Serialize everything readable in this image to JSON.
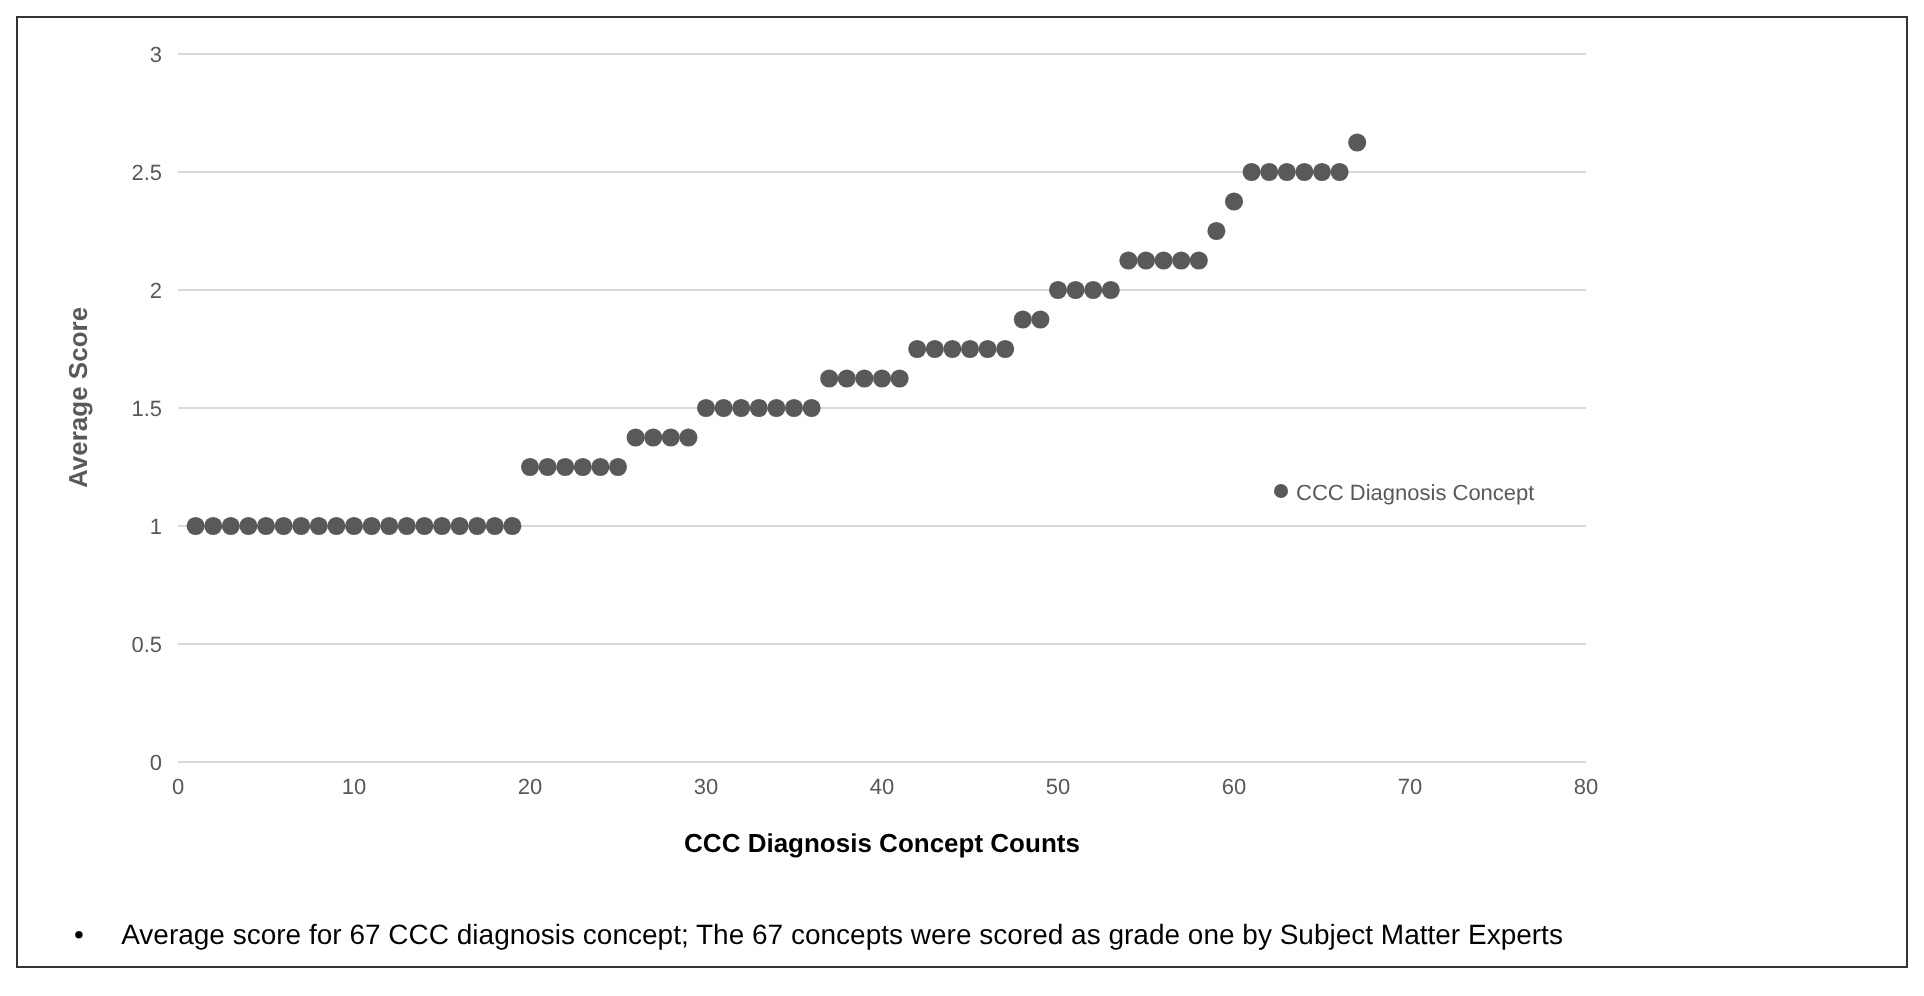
{
  "chart_data": {
    "type": "scatter",
    "xlabel": "CCC Diagnosis Concept Counts",
    "ylabel": "Average Score",
    "x": [
      1,
      2,
      3,
      4,
      5,
      6,
      7,
      8,
      9,
      10,
      11,
      12,
      13,
      14,
      15,
      16,
      17,
      18,
      19,
      20,
      21,
      22,
      23,
      24,
      25,
      26,
      27,
      28,
      29,
      30,
      31,
      32,
      33,
      34,
      35,
      36,
      37,
      38,
      39,
      40,
      41,
      42,
      43,
      44,
      45,
      46,
      47,
      48,
      49,
      50,
      51,
      52,
      53,
      54,
      55,
      56,
      57,
      58,
      59,
      60,
      61,
      62,
      63,
      64,
      65,
      66,
      67
    ],
    "series": [
      {
        "name": "CCC Diagnosis Concept",
        "color": "#595959",
        "values": [
          1,
          1,
          1,
          1,
          1,
          1,
          1,
          1,
          1,
          1,
          1,
          1,
          1,
          1,
          1,
          1,
          1,
          1,
          1,
          1.25,
          1.25,
          1.25,
          1.25,
          1.25,
          1.25,
          1.375,
          1.375,
          1.375,
          1.375,
          1.5,
          1.5,
          1.5,
          1.5,
          1.5,
          1.5,
          1.5,
          1.625,
          1.625,
          1.625,
          1.625,
          1.625,
          1.75,
          1.75,
          1.75,
          1.75,
          1.75,
          1.75,
          1.875,
          1.875,
          2,
          2,
          2,
          2,
          2.125,
          2.125,
          2.125,
          2.125,
          2.125,
          2.25,
          2.375,
          2.5,
          2.5,
          2.5,
          2.5,
          2.5,
          2.5,
          2.625
        ]
      }
    ],
    "xlim": [
      0,
      80
    ],
    "xticks": [
      0,
      10,
      20,
      30,
      40,
      50,
      60,
      70,
      80
    ],
    "ylim": [
      0,
      3
    ],
    "yticks": [
      0,
      0.5,
      1,
      1.5,
      2,
      2.5,
      3
    ],
    "grid": "y",
    "legend": "right",
    "marker": "circle",
    "annotations": [
      "•     Average score for 67 CCC diagnosis concept; The 67 concepts were scored as grade one by Subject Matter Experts"
    ]
  }
}
